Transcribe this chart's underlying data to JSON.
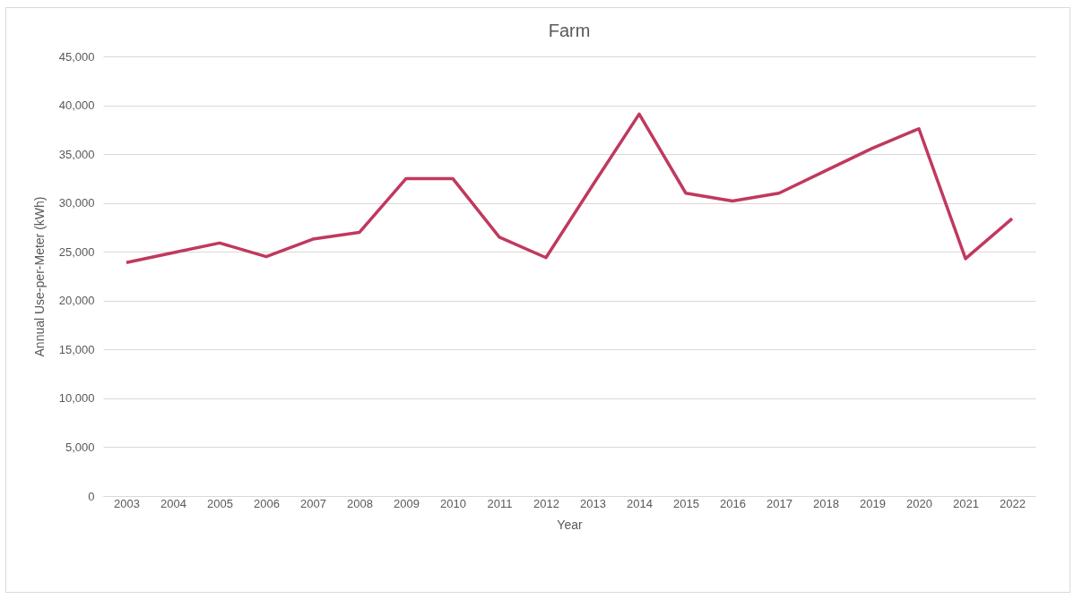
{
  "chart_data": {
    "type": "line",
    "title": "Farm",
    "xlabel": "Year",
    "ylabel": "Annual Use-per-Meter (kWh)",
    "categories": [
      "2003",
      "2004",
      "2005",
      "2006",
      "2007",
      "2008",
      "2009",
      "2010",
      "2011",
      "2012",
      "2013",
      "2014",
      "2015",
      "2016",
      "2017",
      "2018",
      "2019",
      "2020",
      "2021",
      "2022"
    ],
    "series": [
      {
        "color": "#c0395e",
        "values": [
          23900,
          24900,
          25900,
          24500,
          26300,
          27000,
          32500,
          32500,
          26500,
          24400,
          31800,
          39100,
          31000,
          30200,
          31000,
          33300,
          35600,
          37600,
          24300,
          28400
        ]
      }
    ],
    "ylim": [
      0,
      45000
    ],
    "yticks": [
      {
        "value": 0,
        "label": "0"
      },
      {
        "value": 5000,
        "label": "5,000"
      },
      {
        "value": 10000,
        "label": "10,000"
      },
      {
        "value": 15000,
        "label": "15,000"
      },
      {
        "value": 20000,
        "label": "20,000"
      },
      {
        "value": 25000,
        "label": "25,000"
      },
      {
        "value": 30000,
        "label": "30,000"
      },
      {
        "value": 35000,
        "label": "35,000"
      },
      {
        "value": 40000,
        "label": "40,000"
      },
      {
        "value": 45000,
        "label": "45,000"
      }
    ],
    "grid": "y",
    "legend": false,
    "marker": "none",
    "line_style": "solid"
  }
}
